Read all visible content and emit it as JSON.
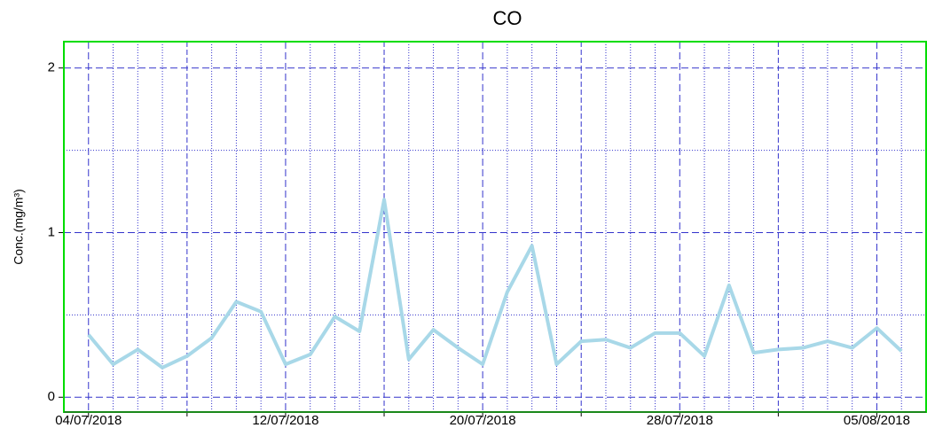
{
  "chart_data": {
    "type": "line",
    "title": "CO",
    "ylabel": "Conc.(mg/m³)",
    "x": [
      "04/07/2018",
      "05/07/2018",
      "06/07/2018",
      "07/07/2018",
      "08/07/2018",
      "09/07/2018",
      "10/07/2018",
      "11/07/2018",
      "12/07/2018",
      "13/07/2018",
      "14/07/2018",
      "15/07/2018",
      "16/07/2018",
      "17/07/2018",
      "18/07/2018",
      "19/07/2018",
      "20/07/2018",
      "21/07/2018",
      "22/07/2018",
      "23/07/2018",
      "24/07/2018",
      "25/07/2018",
      "26/07/2018",
      "27/07/2018",
      "28/07/2018",
      "29/07/2018",
      "30/07/2018",
      "31/07/2018",
      "01/08/2018",
      "02/08/2018",
      "03/08/2018",
      "04/08/2018",
      "05/08/2018",
      "06/08/2018"
    ],
    "series": [
      {
        "name": "CO",
        "color": "#a8d8e8",
        "values": [
          0.38,
          0.2,
          0.29,
          0.18,
          0.25,
          0.36,
          0.58,
          0.52,
          0.2,
          0.26,
          0.49,
          0.4,
          1.2,
          0.23,
          0.41,
          0.3,
          0.2,
          0.64,
          0.92,
          0.2,
          0.34,
          0.35,
          0.3,
          0.39,
          0.39,
          0.25,
          0.68,
          0.27,
          0.29,
          0.3,
          0.34,
          0.3,
          0.42,
          0.28
        ]
      }
    ],
    "xlim": [
      "03/07/2018",
      "07/08/2018"
    ],
    "xticks": [
      "04/07/2018",
      "12/07/2018",
      "20/07/2018",
      "28/07/2018",
      "05/08/2018"
    ],
    "ylim": [
      -0.09,
      2.16
    ],
    "yticks": [
      0,
      1,
      2
    ],
    "grid": true
  }
}
